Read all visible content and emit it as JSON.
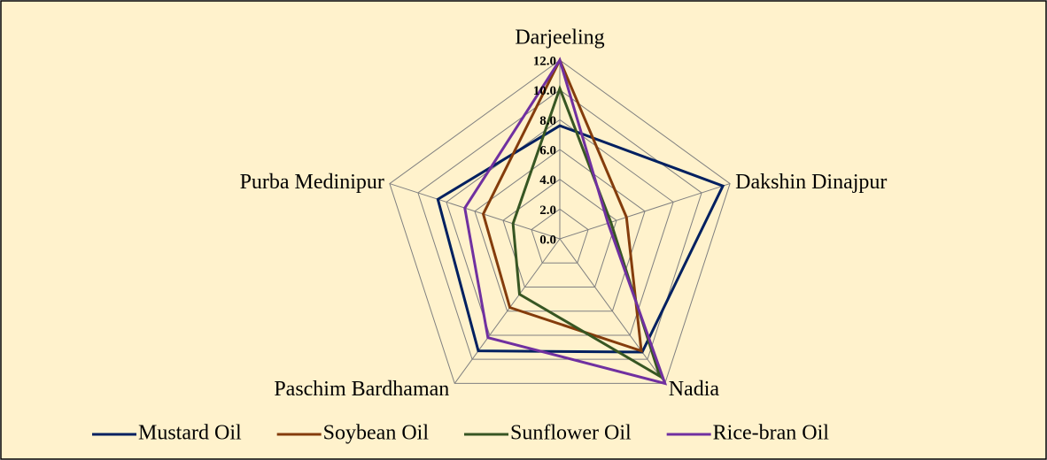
{
  "chart_data": {
    "type": "radar",
    "categories": [
      "Darjeeling",
      "Dakshin Dinajpur",
      "Nadia",
      "Paschim Bardhaman",
      "Purba Medinipur"
    ],
    "series": [
      {
        "name": "Mustard Oil",
        "color": "#002060",
        "values": [
          7.6,
          11.5,
          9.4,
          9.3,
          8.6
        ]
      },
      {
        "name": "Soybean Oil",
        "color": "#843c0c",
        "values": [
          12.0,
          4.7,
          9.3,
          5.7,
          5.4
        ]
      },
      {
        "name": "Sunflower Oil",
        "color": "#375623",
        "values": [
          10.1,
          3.6,
          11.4,
          4.6,
          3.3
        ]
      },
      {
        "name": "Rice-bran Oil",
        "color": "#7030a0",
        "values": [
          12.0,
          3.4,
          12.0,
          8.2,
          6.7
        ]
      }
    ],
    "ylim": [
      0,
      12
    ],
    "yticks": [
      {
        "value": 0,
        "label": "0.0"
      },
      {
        "value": 2,
        "label": "2.0"
      },
      {
        "value": 4,
        "label": "4.0"
      },
      {
        "value": 6,
        "label": "6.0"
      },
      {
        "value": 8,
        "label": "8.0"
      },
      {
        "value": 10,
        "label": "10.0"
      },
      {
        "value": 12,
        "label": "12.0"
      }
    ],
    "grid": true,
    "legend": "bottom"
  }
}
